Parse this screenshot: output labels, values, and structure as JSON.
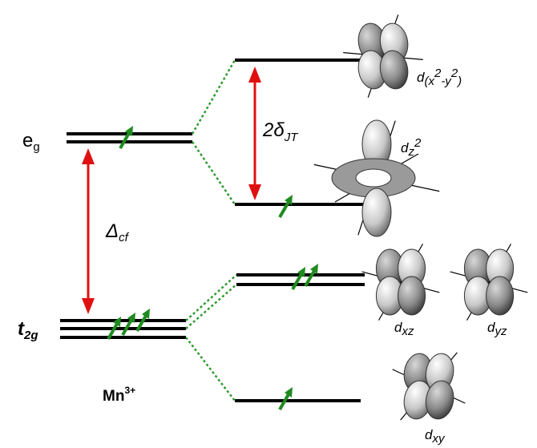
{
  "labels": {
    "eg": [
      "e",
      "g"
    ],
    "t2g": [
      "t",
      "2g"
    ],
    "delta_cf": [
      "Δ",
      "cf"
    ],
    "delta_jt": [
      "2δ",
      "JT"
    ],
    "ion": [
      "Mn",
      "3+"
    ]
  },
  "orbitals": {
    "dx2y2": [
      "d",
      "(x",
      "2",
      "-y",
      "2",
      ")"
    ],
    "dz2": [
      "d",
      "z",
      "2"
    ],
    "dxz": [
      "d",
      "xz"
    ],
    "dyz": [
      "d",
      "yz"
    ],
    "dxy": [
      "d",
      "xy"
    ]
  }
}
